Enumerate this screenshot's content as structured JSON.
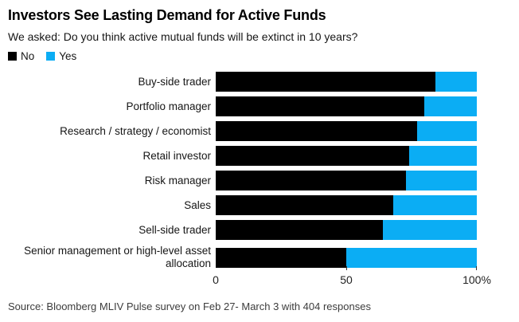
{
  "header": {
    "title": "Investors See Lasting Demand for Active Funds",
    "subtitle": "We asked: Do you think active mutual funds will be extinct in 10 years?"
  },
  "legend": {
    "position": "top-left",
    "items": [
      {
        "label": "No",
        "color": "#000000",
        "swatch_icon": "square-swatch-icon"
      },
      {
        "label": "Yes",
        "color": "#0badf4",
        "swatch_icon": "square-swatch-icon"
      }
    ]
  },
  "chart_data": {
    "type": "bar",
    "orientation": "horizontal",
    "stacked": true,
    "unit": "percent",
    "title": "Investors See Lasting Demand for Active Funds",
    "xlabel": "",
    "ylabel": "",
    "xlim": [
      0,
      100
    ],
    "grid": false,
    "legend_position": "top-left",
    "categories": [
      "Buy-side trader",
      "Portfolio manager",
      "Research / strategy / economist",
      "Retail investor",
      "Risk manager",
      "Sales",
      "Sell-side trader",
      "Senior management or high-level asset allocation"
    ],
    "series": [
      {
        "name": "No",
        "color": "#000000",
        "values": [
          84,
          80,
          77,
          74,
          73,
          68,
          64,
          50
        ]
      },
      {
        "name": "Yes",
        "color": "#0badf4",
        "values": [
          16,
          20,
          23,
          26,
          27,
          32,
          36,
          50
        ]
      }
    ],
    "xticks": [
      {
        "value": 0,
        "label": "0"
      },
      {
        "value": 50,
        "label": "50"
      },
      {
        "value": 100,
        "label": "100%"
      }
    ]
  },
  "footer": {
    "source": "Source: Bloomberg MLIV Pulse survey on Feb 27- March 3 with 404 responses"
  },
  "colors": {
    "background": "#ffffff",
    "bar_no": "#000000",
    "bar_yes": "#0badf4",
    "text": "#000000"
  }
}
